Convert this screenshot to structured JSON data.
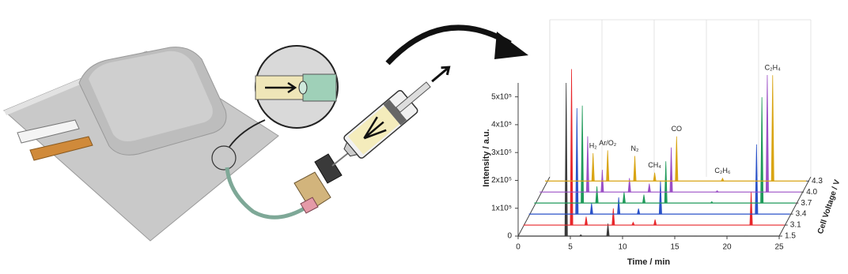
{
  "chart_data": {
    "type": "waterfall",
    "y_label": "Intensity / a.u.",
    "x_label": "Time / min",
    "z_label": "Cell Voltage / V",
    "x": [
      4.6,
      6.0,
      8.6,
      10.5,
      12.6,
      17.0,
      21.8
    ],
    "peak_labels": [
      "H₂",
      "Ar/O₂",
      "N₂",
      "CH₄",
      "CO",
      "C₂H₆",
      "C₂H₄"
    ],
    "series": [
      {
        "name": "1.5",
        "color": "#3a3a3a",
        "values": [
          550000,
          5000,
          45000,
          0,
          0,
          0,
          0
        ]
      },
      {
        "name": "3.1",
        "color": "#e8262a",
        "values": [
          560000,
          30000,
          60000,
          10000,
          20000,
          0,
          120000
        ]
      },
      {
        "name": "3.4",
        "color": "#2a52c8",
        "values": [
          380000,
          40000,
          60000,
          20000,
          120000,
          0,
          250000
        ]
      },
      {
        "name": "3.7",
        "color": "#1f9a5a",
        "values": [
          350000,
          60000,
          40000,
          30000,
          150000,
          5000,
          380000
        ]
      },
      {
        "name": "4.0",
        "color": "#9b4fc6",
        "values": [
          200000,
          80000,
          50000,
          30000,
          160000,
          5000,
          420000
        ]
      },
      {
        "name": "4.3",
        "color": "#d9a514",
        "values": [
          100000,
          110000,
          90000,
          30000,
          160000,
          10000,
          380000
        ]
      }
    ],
    "xlim": [
      0,
      25
    ],
    "xticks": [
      0,
      5,
      10,
      15,
      20,
      25
    ],
    "ylim": [
      0,
      550000
    ],
    "yticks": [
      0,
      {
        "value": 100000,
        "label": "1x10⁵"
      },
      {
        "value": 200000,
        "label": "2x10⁵"
      },
      {
        "value": 300000,
        "label": "3x10⁵"
      },
      {
        "value": 400000,
        "label": "4x10⁵"
      },
      {
        "value": 500000,
        "label": "5x10⁵"
      }
    ],
    "grid": true
  }
}
